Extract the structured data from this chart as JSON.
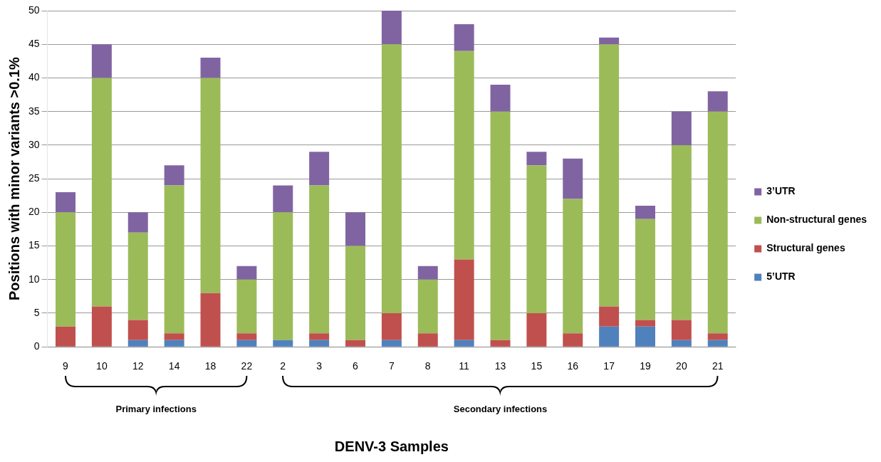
{
  "chart_data": {
    "type": "bar",
    "stacked": true,
    "xlabel": "DENV-3 Samples",
    "ylabel": "Positions with minor variants >0.1%",
    "categories": [
      "9",
      "10",
      "12",
      "14",
      "18",
      "22",
      "2",
      "3",
      "6",
      "7",
      "8",
      "11",
      "13",
      "15",
      "16",
      "17",
      "19",
      "20",
      "21"
    ],
    "series": [
      {
        "name": "5’UTR",
        "color": "#4f81bd",
        "values": [
          0,
          0,
          1,
          1,
          0,
          1,
          1,
          1,
          0,
          1,
          0,
          1,
          0,
          0,
          0,
          3,
          3,
          1,
          1
        ]
      },
      {
        "name": "Structural genes",
        "color": "#c0504d",
        "values": [
          3,
          6,
          3,
          1,
          8,
          1,
          0,
          1,
          1,
          4,
          2,
          12,
          1,
          5,
          2,
          3,
          1,
          3,
          1
        ]
      },
      {
        "name": "Non-structural genes",
        "color": "#9bbb59",
        "values": [
          17,
          34,
          13,
          22,
          32,
          8,
          19,
          22,
          14,
          40,
          8,
          31,
          34,
          22,
          20,
          39,
          15,
          26,
          33
        ]
      },
      {
        "name": "3’UTR",
        "color": "#8064a2",
        "values": [
          3,
          5,
          3,
          3,
          3,
          2,
          4,
          5,
          5,
          5,
          2,
          4,
          4,
          2,
          6,
          1,
          2,
          5,
          3
        ]
      }
    ],
    "ylim": [
      0,
      50
    ],
    "yticks": [
      0,
      5,
      10,
      15,
      20,
      25,
      30,
      35,
      40,
      45,
      50
    ],
    "grid": "y",
    "legend": "right",
    "annotations": [
      "Primary infections",
      "Secondary infections"
    ]
  }
}
